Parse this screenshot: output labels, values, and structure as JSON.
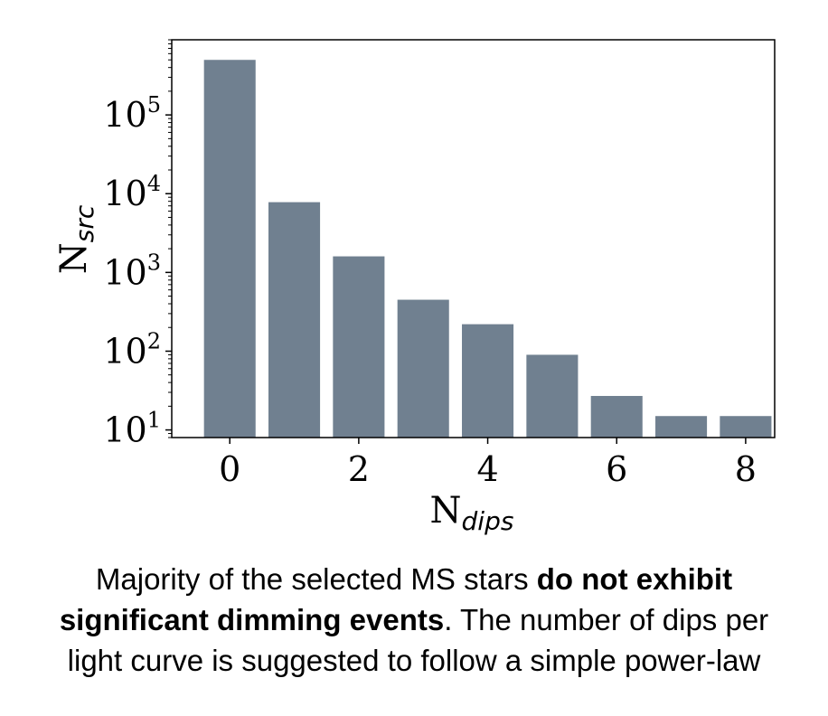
{
  "chart_data": {
    "type": "bar",
    "x": [
      0,
      1,
      2,
      3,
      4,
      5,
      6,
      7,
      8
    ],
    "values": [
      500000,
      7800,
      1600,
      450,
      220,
      90,
      27,
      15,
      15
    ],
    "color": "#708090",
    "xlabel_main": "N",
    "xlabel_sub": "dips",
    "ylabel_main": "N",
    "ylabel_sub": "src",
    "yscale": "log",
    "ylim": [
      8,
      900000
    ],
    "xlim": [
      -0.9,
      8.45
    ],
    "xticks": [
      "0",
      "2",
      "4",
      "6",
      "8"
    ],
    "xtick_values": [
      0,
      2,
      4,
      6,
      8
    ],
    "yticks": [
      {
        "base": "10",
        "exp": "1",
        "value": 10
      },
      {
        "base": "10",
        "exp": "2",
        "value": 100
      },
      {
        "base": "10",
        "exp": "3",
        "value": 1000
      },
      {
        "base": "10",
        "exp": "4",
        "value": 10000
      },
      {
        "base": "10",
        "exp": "5",
        "value": 100000
      }
    ],
    "grid": false
  },
  "caption": {
    "part1": "Majority of the selected MS stars ",
    "bold1": "do not exhibit",
    "bold2": "significant dimming events",
    "part2": ". The number of dips per",
    "line3": "light curve is suggested to follow a simple power-law"
  }
}
